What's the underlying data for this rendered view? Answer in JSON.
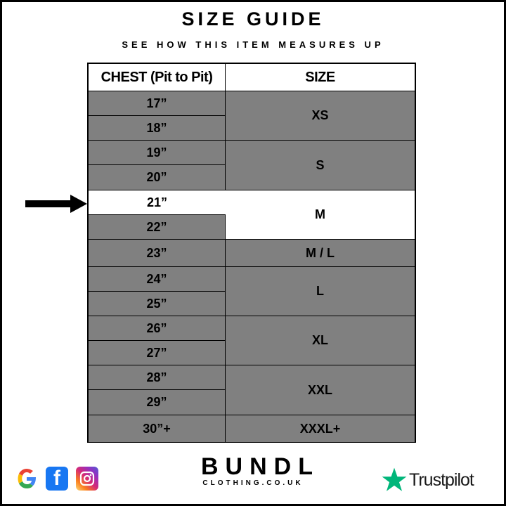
{
  "header": {
    "title": "SIZE GUIDE",
    "subtitle": "SEE HOW THIS ITEM MEASURES UP"
  },
  "table": {
    "columns": [
      "CHEST (Pit to Pit)",
      "SIZE"
    ],
    "chest": [
      "17”",
      "18”",
      "19”",
      "20”",
      "21”",
      "22”",
      "23”",
      "24”",
      "25”",
      "26”",
      "27”",
      "28”",
      "29”",
      "30”+"
    ],
    "sizes": [
      "XS",
      "S",
      "M",
      "M / L",
      "L",
      "XL",
      "XXL",
      "XXXL+"
    ],
    "highlighted_chest": "21”",
    "highlighted_size": "M",
    "colors": {
      "row": "#808080",
      "highlight": "#ffffff"
    }
  },
  "footer": {
    "brand": "BUNDL",
    "brand_sub": "CLOTHING.CO.UK",
    "trustpilot": "Trustpilot",
    "social_icons": [
      "google-icon",
      "facebook-icon",
      "instagram-icon"
    ],
    "trustpilot_color": "#00b67a"
  }
}
